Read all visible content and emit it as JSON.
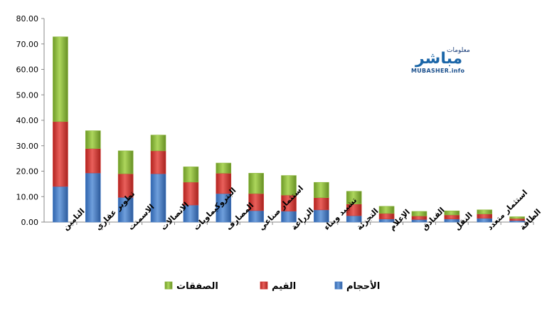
{
  "logo": {
    "top_text": "معلومات",
    "main_text": "مباشر",
    "en_text": "MUBASHER.info"
  },
  "colors": {
    "volumes": "#4a7fc8",
    "values": "#d23a36",
    "deals": "#8cb63c"
  },
  "chart_data": {
    "type": "bar",
    "stacked": true,
    "categories": [
      "التامين",
      "تطوير عقاري",
      "الاسمنت",
      "الاتصالات",
      "البتروكيماويات",
      "المصارف",
      "استثمار صناعي",
      "الزراعة",
      "تشييد وبناء",
      "التجزئة",
      "الإعلام",
      "الفنادق",
      "النقل",
      "استثمار متعدد",
      "الطاقة"
    ],
    "series": [
      {
        "name": "الأحجام",
        "values": [
          14.0,
          19.3,
          9.7,
          19.0,
          6.7,
          11.2,
          4.5,
          4.3,
          4.8,
          2.5,
          1.2,
          1.0,
          1.2,
          1.5,
          0.6
        ]
      },
      {
        "name": "القيم",
        "values": [
          25.5,
          9.6,
          9.3,
          9.0,
          9.0,
          8.0,
          6.7,
          6.3,
          4.8,
          4.6,
          2.2,
          1.4,
          1.6,
          1.7,
          0.8
        ]
      },
      {
        "name": "الصفقات",
        "values": [
          33.3,
          7.0,
          9.0,
          6.2,
          6.0,
          4.0,
          8.0,
          7.7,
          6.0,
          5.0,
          2.8,
          1.8,
          1.6,
          1.6,
          0.7
        ]
      }
    ],
    "yticks": [
      "0.00",
      "10.00",
      "20.00",
      "30.00",
      "40.00",
      "50.00",
      "60.00",
      "70.00",
      "80.00"
    ],
    "ylim": [
      0,
      80
    ],
    "legend_position": "bottom"
  }
}
